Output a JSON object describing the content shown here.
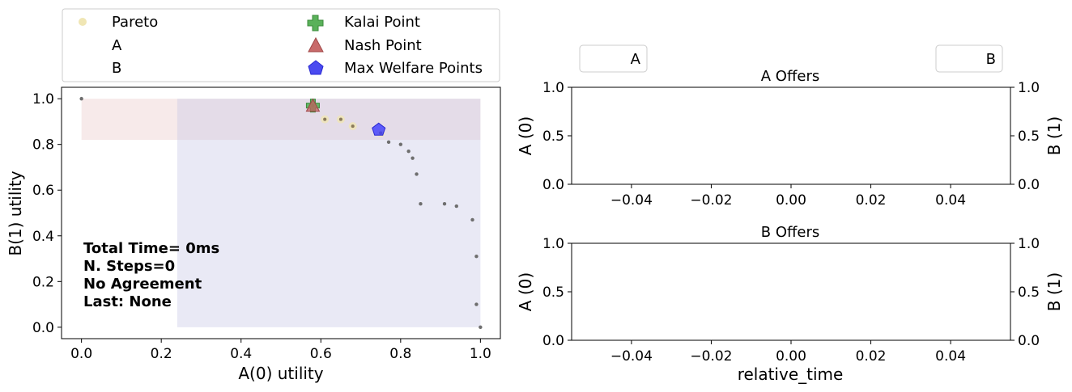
{
  "chart_data": [
    {
      "type": "scatter",
      "xlabel": "A(0) utility",
      "ylabel": "B(1) utility",
      "xlim": [
        -0.05,
        1.05
      ],
      "ylim": [
        -0.05,
        1.05
      ],
      "x_ticks": [
        "0.0",
        "0.2",
        "0.4",
        "0.6",
        "0.8",
        "1.0"
      ],
      "y_ticks": [
        "0.0",
        "0.2",
        "0.4",
        "0.6",
        "0.8",
        "1.0"
      ],
      "legend": {
        "placement": "above",
        "items": [
          "Pareto",
          "A",
          "B",
          "Kalai Point",
          "Nash Point",
          "Max Welfare Points"
        ]
      },
      "annotation": [
        "Total Time= 0ms",
        "N. Steps=0",
        "No Agreement",
        "Last: None"
      ],
      "regions": [
        {
          "name": "A",
          "x": [
            0.0,
            1.0
          ],
          "y": [
            0.82,
            1.0
          ],
          "color": "#eacbcb"
        },
        {
          "name": "B",
          "x": [
            0.24,
            1.0
          ],
          "y": [
            0.0,
            1.0
          ],
          "color": "#c9c9e6"
        }
      ],
      "outcomes": {
        "x": [
          0.0,
          0.58,
          0.61,
          0.65,
          0.68,
          0.75,
          0.77,
          0.8,
          0.82,
          0.83,
          0.84,
          0.85,
          0.91,
          0.94,
          0.98,
          0.99,
          0.99,
          1.0
        ],
        "y": [
          1.0,
          0.96,
          0.91,
          0.91,
          0.88,
          0.85,
          0.81,
          0.8,
          0.77,
          0.74,
          0.67,
          0.54,
          0.54,
          0.53,
          0.47,
          0.31,
          0.1,
          0.0
        ]
      },
      "pareto": {
        "x": [
          0.58,
          0.61,
          0.65,
          0.68,
          0.75
        ],
        "y": [
          0.97,
          0.91,
          0.91,
          0.88,
          0.85
        ]
      },
      "kalai_point": {
        "x": 0.58,
        "y": 0.97
      },
      "nash_point": {
        "x": 0.58,
        "y": 0.97
      },
      "max_welfare_points": [
        {
          "x": 0.745,
          "y": 0.865
        }
      ],
      "colors": {
        "pareto": "#f0e6b4",
        "outcome": "#6e6e6e",
        "kalai": "#4caf50",
        "nash": "#c06060",
        "welfare": "#3a3aff"
      }
    },
    {
      "type": "line",
      "title": "A Offers",
      "xlabel": "",
      "ylabel": "A (0)",
      "ylabel_right": "B (1)",
      "legend": {
        "placement": "top-left",
        "items": [
          "A"
        ]
      },
      "xlim": [
        -0.055,
        0.055
      ],
      "ylim": [
        0,
        1
      ],
      "x_ticks": [
        "−0.04",
        "−0.02",
        "0.00",
        "0.02",
        "0.04"
      ],
      "y_ticks": [
        "0.0",
        "0.5",
        "1.0"
      ],
      "series": []
    },
    {
      "type": "line",
      "title": "B Offers",
      "xlabel": "relative_time",
      "ylabel": "A (0)",
      "ylabel_right": "B (1)",
      "legend": {
        "placement": "top-right",
        "items": [
          "B"
        ]
      },
      "xlim": [
        -0.055,
        0.055
      ],
      "ylim": [
        0,
        1
      ],
      "x_ticks": [
        "−0.04",
        "−0.02",
        "0.00",
        "0.02",
        "0.04"
      ],
      "y_ticks": [
        "0.0",
        "0.5",
        "1.0"
      ],
      "series": []
    }
  ]
}
